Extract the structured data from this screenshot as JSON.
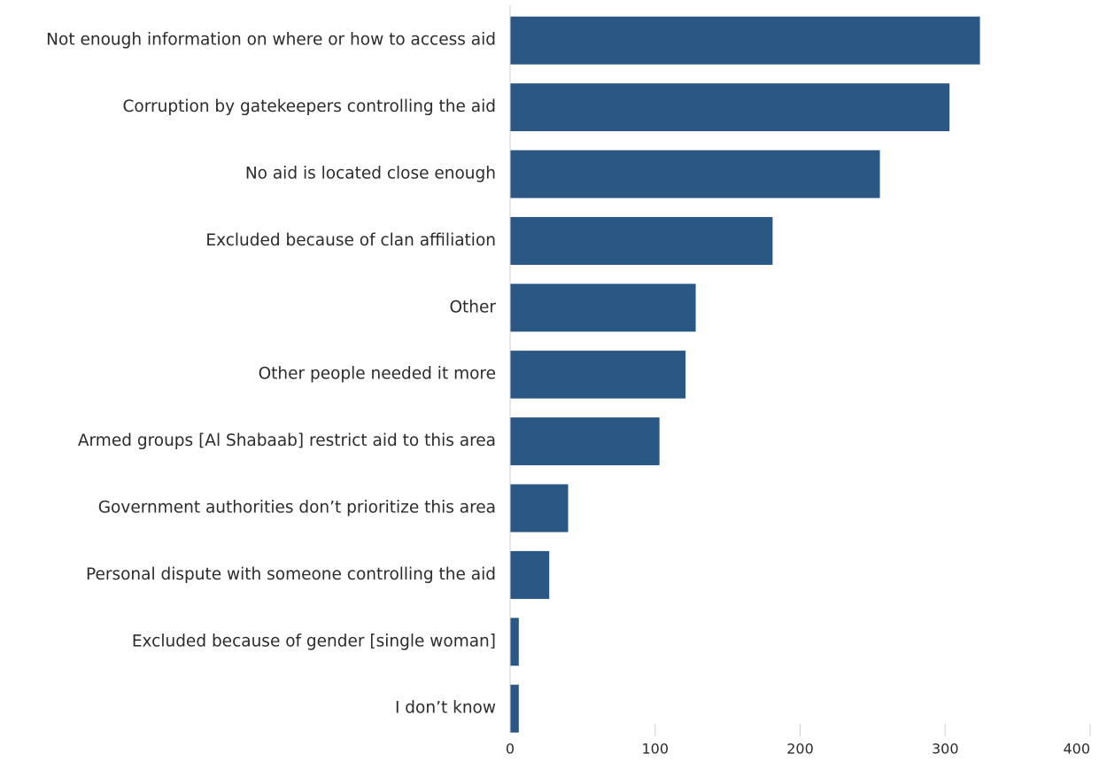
{
  "chart_data": {
    "type": "bar",
    "orientation": "horizontal",
    "categories": [
      "Not enough information on where or how to access aid",
      "Corruption by gatekeepers controlling the aid",
      "No aid is located close enough",
      "Excluded because of clan affiliation",
      "Other",
      "Other people needed it more",
      "Armed groups [Al Shabaab] restrict aid to this area",
      "Government authorities don’t prioritize this area",
      "Personal dispute with someone controlling the aid",
      "Excluded because of gender [single woman]",
      "I don’t know"
    ],
    "values": [
      324,
      303,
      255,
      181,
      128,
      121,
      103,
      40,
      27,
      6,
      6
    ],
    "xlim": [
      0,
      400
    ],
    "xticks": [
      0,
      100,
      200,
      300,
      400
    ],
    "grid": false,
    "colors": {
      "bar": "#2a5784",
      "axis": "#cfcfcf",
      "text": "#2b2b2b"
    }
  }
}
